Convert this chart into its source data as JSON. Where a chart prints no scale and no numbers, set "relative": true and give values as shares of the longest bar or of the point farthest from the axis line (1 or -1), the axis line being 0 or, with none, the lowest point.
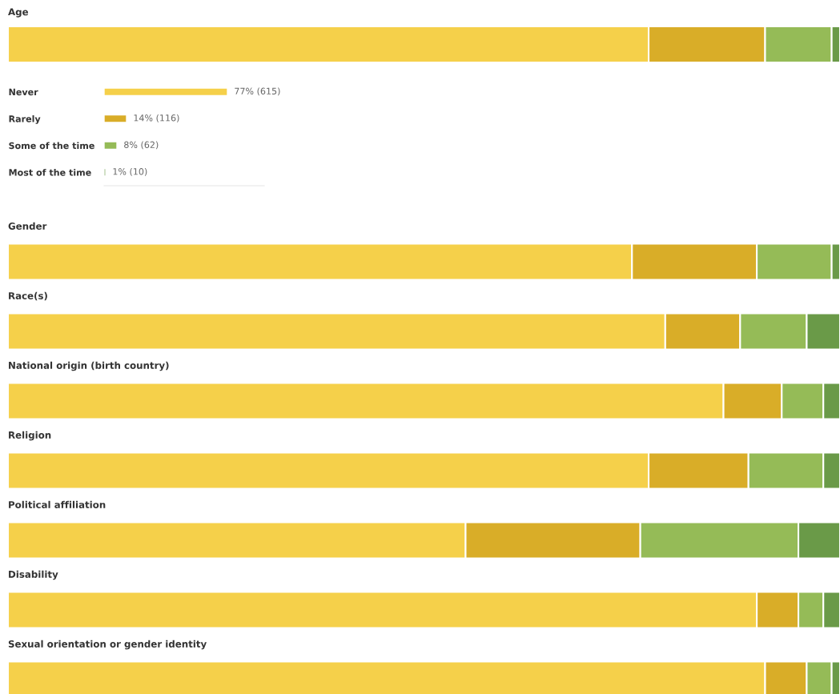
{
  "chart_data": [
    {
      "type": "bar",
      "orientation": "horizontal",
      "stacked": true,
      "relative": true,
      "title": "Age",
      "categories": [
        null
      ],
      "tick_labels": false,
      "legend": false,
      "series": [
        {
          "color": "#f5d04a",
          "values": [
            0.77
          ]
        },
        {
          "color": "#d9ad28",
          "values": [
            0.14
          ]
        },
        {
          "color": "#95bb57",
          "values": [
            0.08
          ]
        },
        {
          "color": "#6a9a48",
          "values": [
            0.01
          ]
        }
      ]
    },
    {
      "type": "bar",
      "orientation": "horizontal",
      "categories": [
        "Never",
        "Rarely",
        "Some of the time",
        "Most of the time"
      ],
      "values": [
        77,
        14,
        8,
        1
      ],
      "colors": [
        "#f5d04a",
        "#d9ad28",
        "#95bb57",
        "#6a9a48"
      ],
      "value_labels": [
        "77% (615)",
        "14% (116)",
        "8% (62)",
        "1% (10)"
      ],
      "xlim": [
        0,
        100
      ],
      "tick_labels": "y"
    },
    {
      "type": "bar",
      "orientation": "horizontal",
      "stacked": true,
      "relative": true,
      "categories": [
        "Gender",
        "Race(s)",
        "National origin (birth country)",
        "Religion",
        "Political affiliation",
        "Disability",
        "Sexual orientation or gender identity"
      ],
      "legend": false,
      "series": [
        {
          "color": "#f5d04a",
          "values": [
            0.75,
            0.79,
            0.86,
            0.77,
            0.55,
            0.9,
            0.91
          ]
        },
        {
          "color": "#d9ad28",
          "values": [
            0.15,
            0.09,
            0.07,
            0.12,
            0.21,
            0.05,
            0.05
          ]
        },
        {
          "color": "#95bb57",
          "values": [
            0.09,
            0.08,
            0.05,
            0.09,
            0.19,
            0.03,
            0.03
          ]
        },
        {
          "color": "#6a9a48",
          "values": [
            0.01,
            0.04,
            0.02,
            0.02,
            0.05,
            0.02,
            0.01
          ]
        }
      ]
    }
  ]
}
